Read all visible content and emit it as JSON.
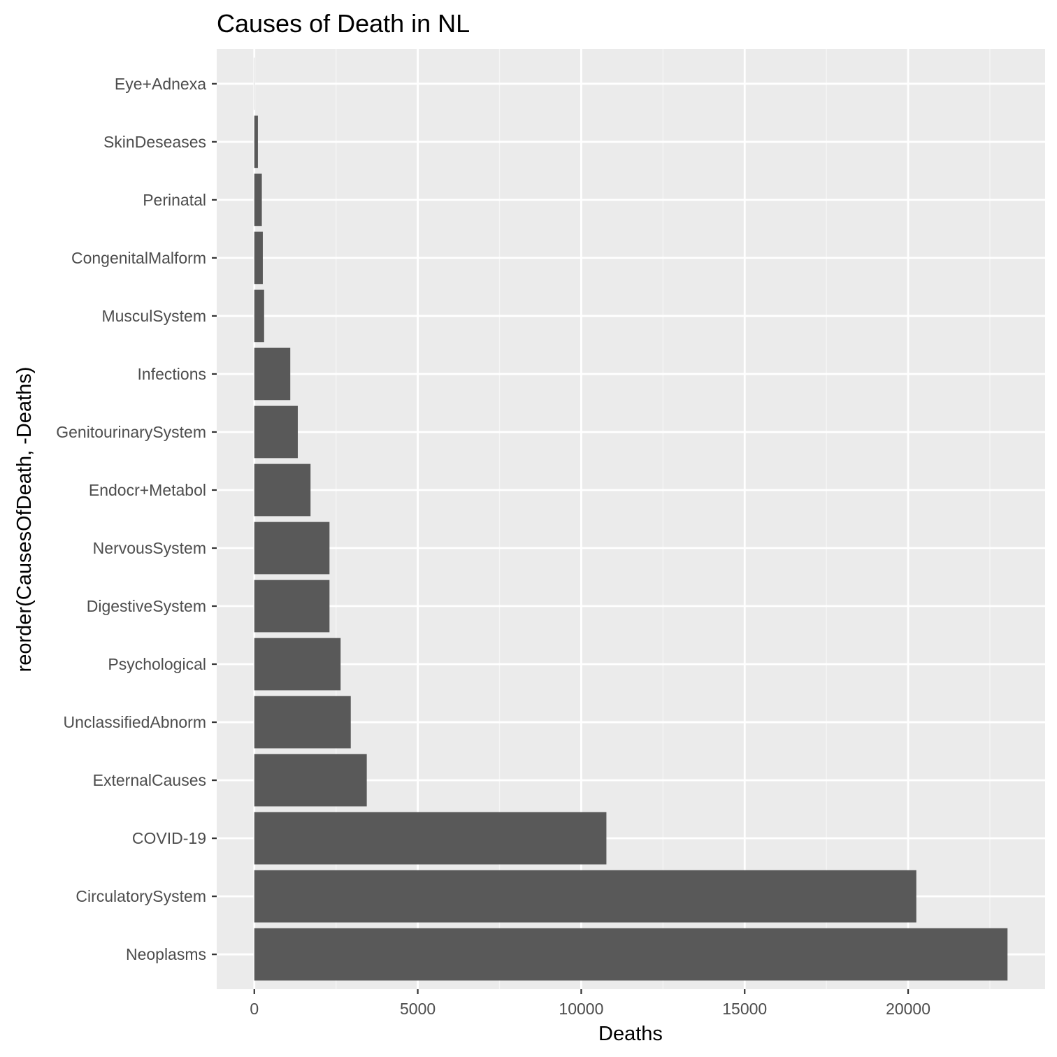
{
  "chart_data": {
    "type": "bar",
    "orientation": "horizontal",
    "title": "Causes of Death in NL",
    "xlabel": "Deaths",
    "ylabel": "reorder(CausesOfDeath, -Deaths)",
    "categories": [
      "Neoplasms",
      "CirculatorySystem",
      "COVID-19",
      "ExternalCauses",
      "UnclassifiedAbnorm",
      "Psychological",
      "DigestiveSystem",
      "NervousSystem",
      "Endocr+Metabol",
      "GenitourinarySystem",
      "Infections",
      "MusculSystem",
      "CongenitalMalform",
      "Perinatal",
      "SkinDeseases",
      "Eye+Adnexa"
    ],
    "values": [
      23040,
      20250,
      10770,
      3440,
      2950,
      2640,
      2300,
      2300,
      1720,
      1330,
      1100,
      300,
      260,
      230,
      110,
      5
    ],
    "x_ticks": [
      0,
      5000,
      10000,
      15000,
      20000
    ],
    "xlim": [
      -1150,
      24190
    ],
    "grid": true,
    "legend": "none",
    "colors": {
      "bar": "#595959",
      "panel_background": "#ebebeb",
      "grid_major": "#ffffff",
      "grid_minor": "#f5f5f5",
      "tick_label": "#4d4d4d",
      "tick_mark": "#333333",
      "text": "#000000"
    }
  }
}
